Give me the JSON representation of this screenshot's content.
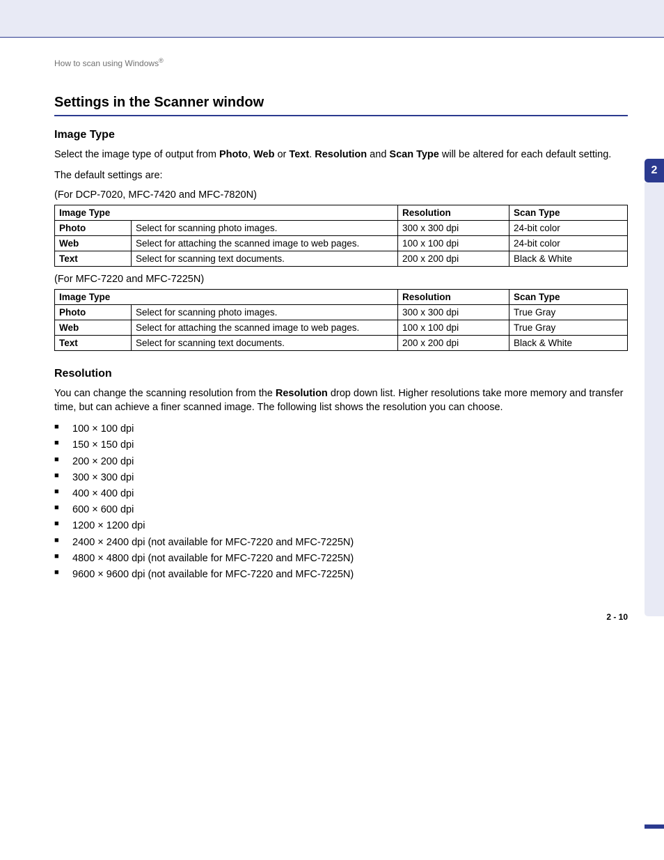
{
  "colors": {
    "band_bg": "#e8eaf5",
    "rule": "#2b3a8f",
    "tab_bg": "#2b3a8f",
    "tab_text": "#ffffff",
    "text": "#000000",
    "breadcrumb": "#707070"
  },
  "breadcrumb": {
    "text": "How to scan using Windows",
    "sup": "®"
  },
  "chapter_tab": "2",
  "page_number": "2 - 10",
  "main_heading": "Settings in the Scanner window",
  "image_type": {
    "heading": "Image Type",
    "para1_pre": "Select the image type of output from ",
    "bold1": "Photo",
    "sep1": ", ",
    "bold2": "Web",
    "sep2": " or ",
    "bold3": "Text",
    "sep3": ". ",
    "bold4": "Resolution",
    "sep4": " and ",
    "bold5": "Scan Type",
    "para1_post": " will be altered for each default setting.",
    "para2": "The default settings are:",
    "caption1": "(For DCP-7020, MFC-7420 and MFC-7820N)",
    "caption2": "(For MFC-7220 and MFC-7225N)",
    "table_headers": {
      "c1": "Image Type",
      "c3": "Resolution",
      "c4": "Scan Type"
    },
    "table1": {
      "rows": [
        {
          "type": "Photo",
          "desc": "Select for scanning photo images.",
          "res": "300 x 300 dpi",
          "scan": "24-bit color"
        },
        {
          "type": "Web",
          "desc": "Select for attaching the scanned image to web pages.",
          "res": "100 x 100 dpi",
          "scan": "24-bit color"
        },
        {
          "type": "Text",
          "desc": "Select for scanning text documents.",
          "res": "200 x 200 dpi",
          "scan": "Black & White"
        }
      ]
    },
    "table2": {
      "rows": [
        {
          "type": "Photo",
          "desc": "Select for scanning photo images.",
          "res": "300 x 300 dpi",
          "scan": "True Gray"
        },
        {
          "type": "Web",
          "desc": "Select for attaching the scanned image to web pages.",
          "res": "100 x 100 dpi",
          "scan": "True Gray"
        },
        {
          "type": "Text",
          "desc": "Select for scanning text documents.",
          "res": "200 x 200 dpi",
          "scan": "Black & White"
        }
      ]
    }
  },
  "resolution": {
    "heading": "Resolution",
    "para_pre": "You can change the scanning resolution from the ",
    "bold": "Resolution",
    "para_post": " drop down list. Higher resolutions take more memory and transfer time, but can achieve a finer scanned image. The following list shows the resolution you can choose.",
    "items": [
      "100 × 100 dpi",
      "150 × 150 dpi",
      "200 × 200 dpi",
      "300 × 300 dpi",
      "400 × 400 dpi",
      "600 × 600 dpi",
      "1200 × 1200 dpi",
      "2400 × 2400 dpi (not available for MFC-7220 and MFC-7225N)",
      "4800 × 4800 dpi (not available for MFC-7220 and MFC-7225N)",
      "9600 × 9600 dpi (not available for MFC-7220 and MFC-7225N)"
    ]
  }
}
